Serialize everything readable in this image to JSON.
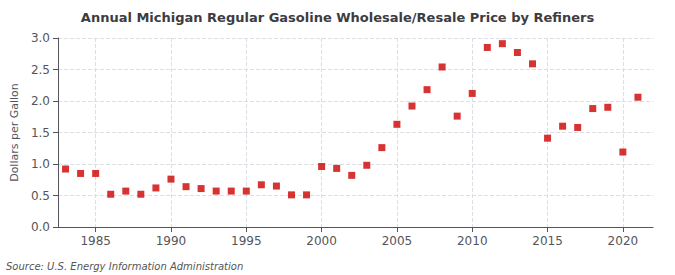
{
  "chart_data": {
    "type": "scatter",
    "title": "Annual Michigan Regular Gasoline Wholesale/Resale Price by Refiners",
    "ylabel": "Dollars per Gallon",
    "annotations": [
      "Source: U.S. Energy Information Administration"
    ],
    "x": [
      1983,
      1984,
      1985,
      1986,
      1987,
      1988,
      1989,
      1990,
      1991,
      1992,
      1993,
      1994,
      1995,
      1996,
      1997,
      1998,
      1999,
      2000,
      2001,
      2002,
      2003,
      2004,
      2005,
      2006,
      2007,
      2008,
      2009,
      2010,
      2011,
      2012,
      2013,
      2014,
      2015,
      2016,
      2017,
      2018,
      2019,
      2020,
      2021
    ],
    "values": [
      0.92,
      0.85,
      0.85,
      0.52,
      0.57,
      0.52,
      0.62,
      0.76,
      0.64,
      0.61,
      0.57,
      0.57,
      0.57,
      0.67,
      0.65,
      0.51,
      0.51,
      0.96,
      0.93,
      0.82,
      0.98,
      1.26,
      1.63,
      1.92,
      2.18,
      2.54,
      1.76,
      2.12,
      2.85,
      2.91,
      2.77,
      2.59,
      1.41,
      1.6,
      1.58,
      1.88,
      1.9,
      1.19,
      2.06
    ],
    "color": "#cc0000",
    "marker": "square",
    "xlim": [
      1982.5,
      2022
    ],
    "xticks": [
      1985,
      1990,
      1995,
      2000,
      2005,
      2010,
      2015,
      2020
    ],
    "ylim": [
      0.0,
      3.0
    ],
    "yticks": [
      {
        "value": 0,
        "label": "0.0"
      },
      0.5,
      {
        "value": 1,
        "label": "1.0"
      },
      1.5,
      {
        "value": 2,
        "label": "2.0"
      },
      2.5,
      {
        "value": 3,
        "label": "3.0"
      }
    ],
    "grid": true
  }
}
